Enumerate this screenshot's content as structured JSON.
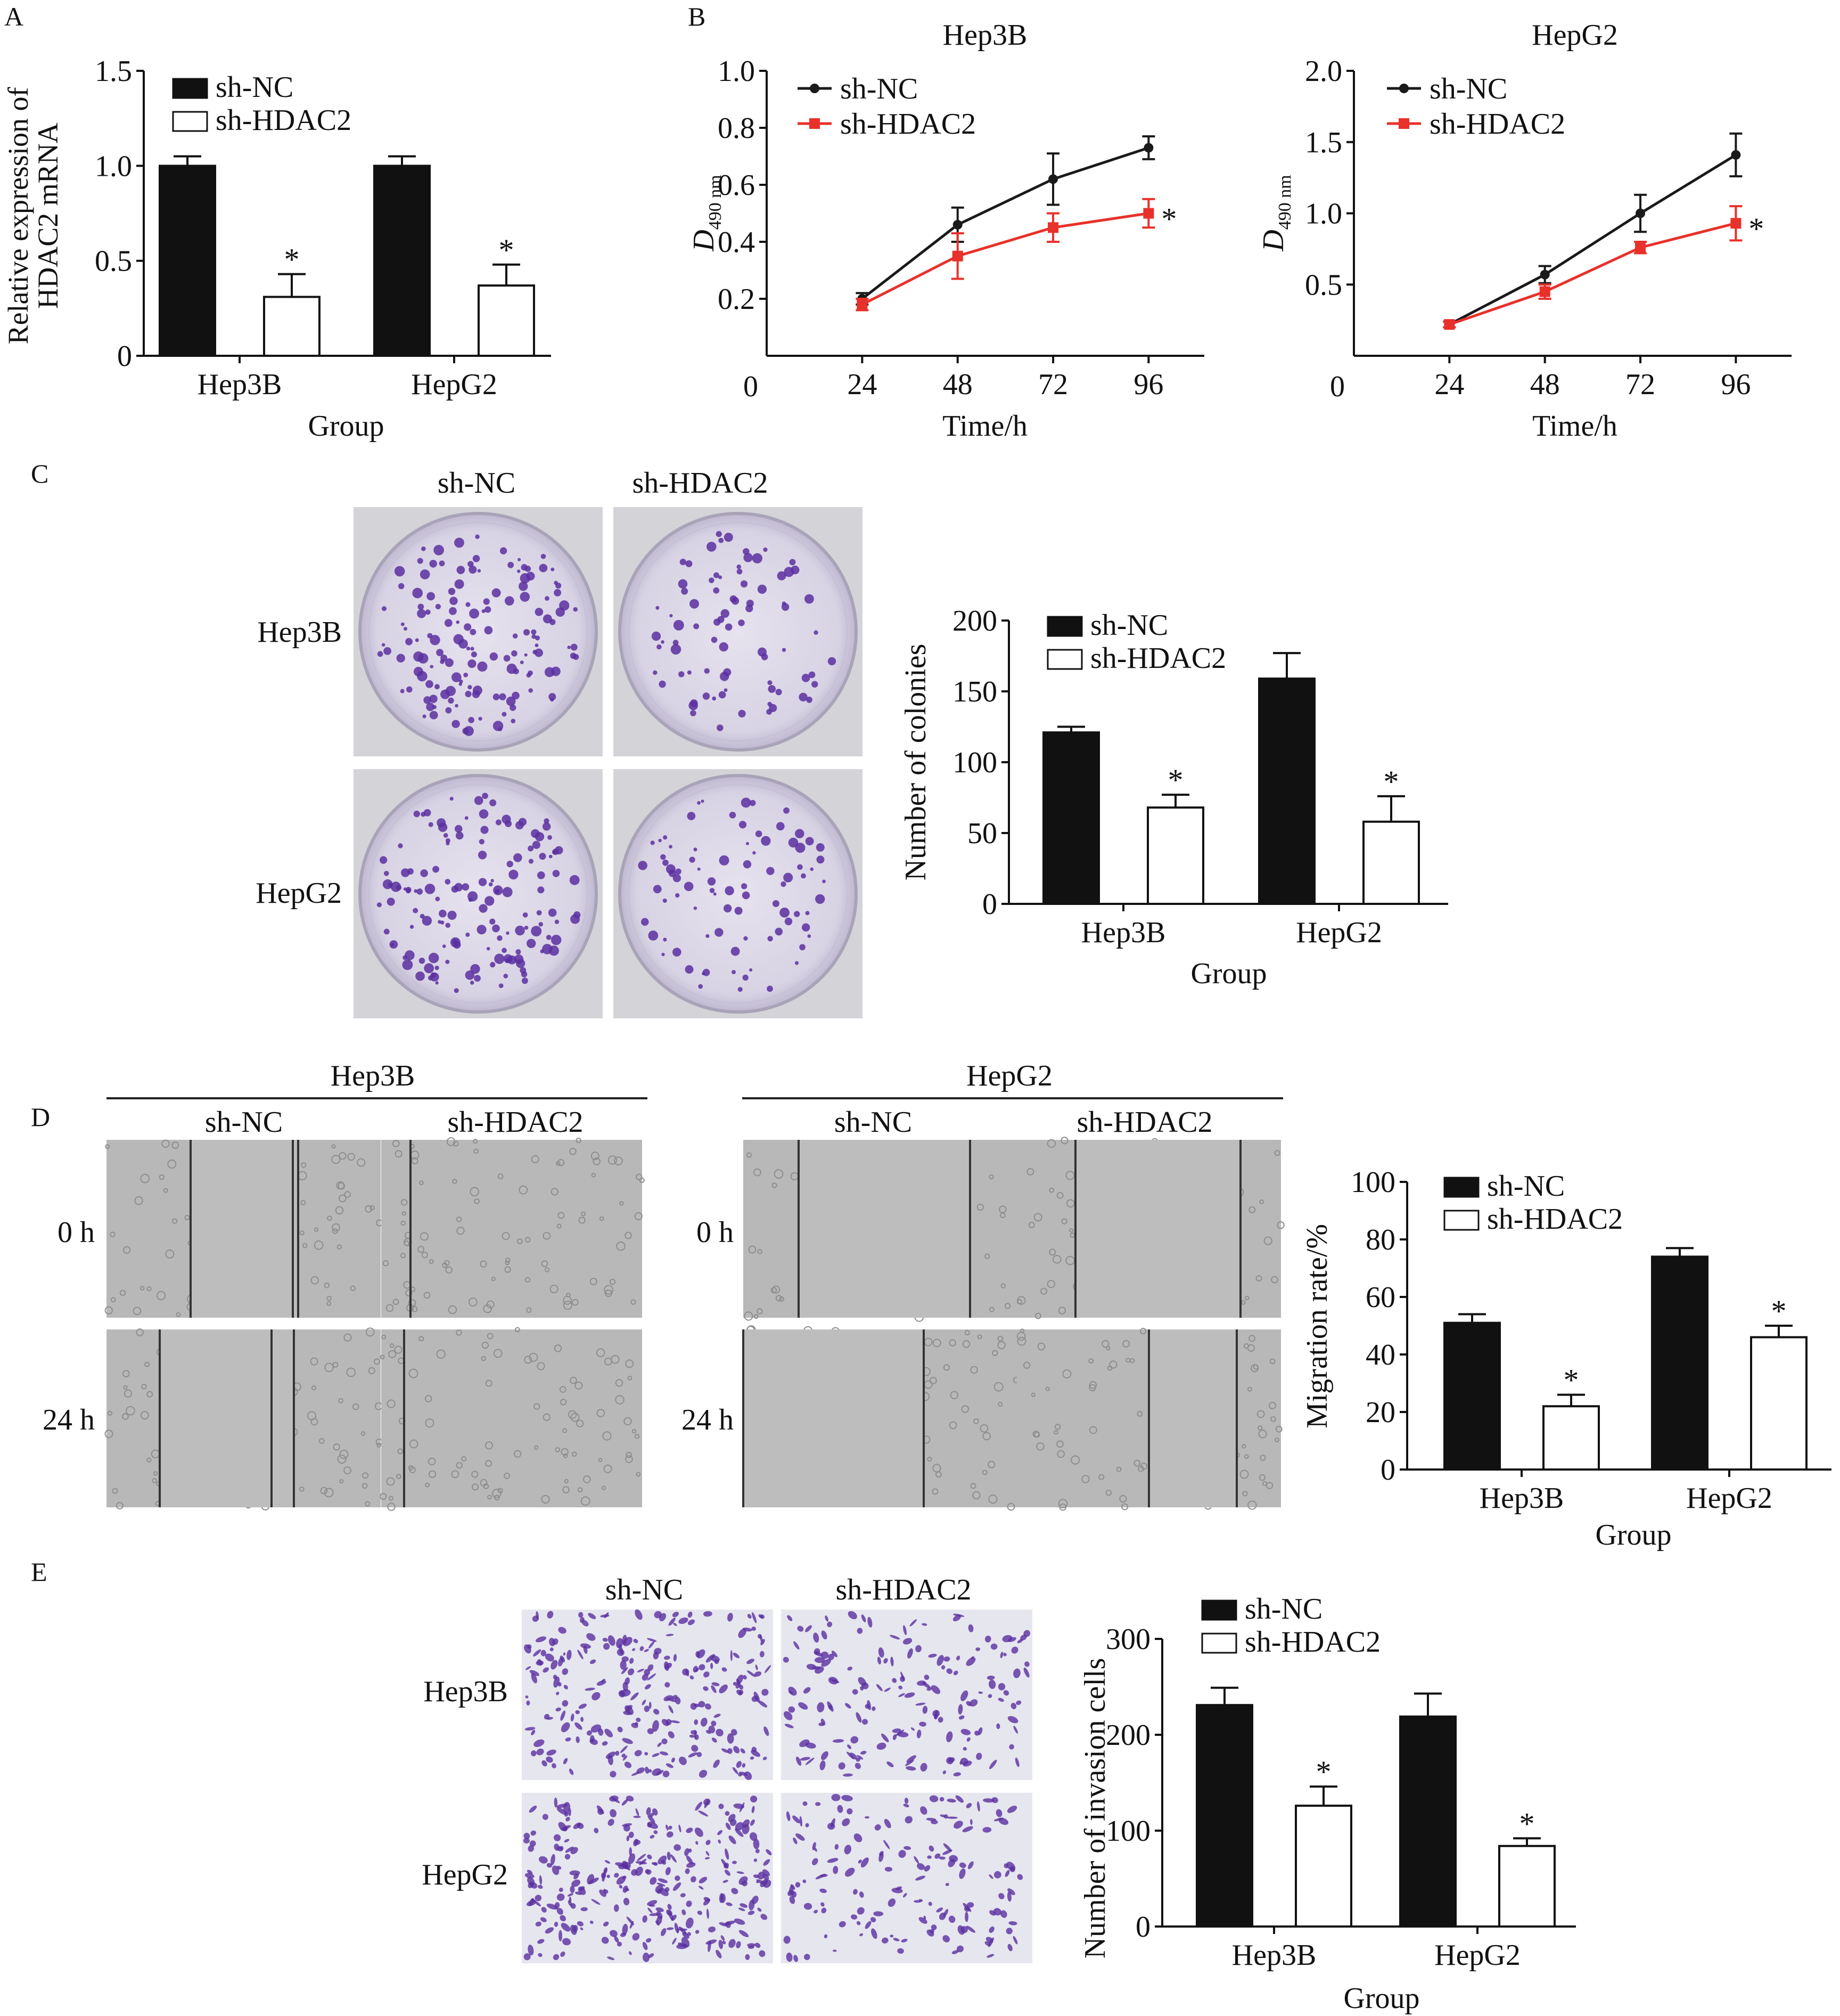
{
  "colors": {
    "nc_fill": "#111111",
    "hdac_fill": "#ffffff",
    "nc_line": "#1a1a1a",
    "hdac_line": "#e8312a",
    "crystal_violet": "#5a2fa0",
    "dish_bg": "#dcd8e6",
    "scratch_bg": "#b8b8b8"
  },
  "legend": {
    "nc": "sh-NC",
    "hdac": "sh-HDAC2"
  },
  "star": "*",
  "panelA": {
    "letter": "A",
    "ylabel_line1": "Relative expression of",
    "ylabel_line2": "HDAC2 mRNA",
    "xlabel": "Group"
  },
  "panelB": {
    "letter": "B",
    "left_title": "Hep3B",
    "right_title": "HepG2",
    "ylabel_main": "D",
    "ylabel_sub": "490 nm",
    "xlabel": "Time/h",
    "x_origin_label": "0"
  },
  "panelC": {
    "letter": "C",
    "col_labels": [
      "sh-NC",
      "sh-HDAC2"
    ],
    "row_labels": [
      "Hep3B",
      "HepG2"
    ],
    "ylabel": "Number of colonies",
    "xlabel": "Group"
  },
  "panelD": {
    "letter": "D",
    "groups": [
      "Hep3B",
      "HepG2"
    ],
    "col_labels": [
      "sh-NC",
      "sh-HDAC2"
    ],
    "row_labels": [
      "0 h",
      "24 h"
    ],
    "ylabel": "Migration rate/%",
    "xlabel": "Group"
  },
  "panelE": {
    "letter": "E",
    "col_labels": [
      "sh-NC",
      "sh-HDAC2"
    ],
    "row_labels": [
      "Hep3B",
      "HepG2"
    ],
    "ylabel": "Number of invasion cells",
    "xlabel": "Group"
  },
  "chart_data": [
    {
      "panel": "A",
      "type": "bar",
      "categories": [
        "Hep3B",
        "HepG2"
      ],
      "series": [
        {
          "name": "sh-NC",
          "values": [
            1.0,
            1.0
          ],
          "errors": [
            0.05,
            0.05
          ]
        },
        {
          "name": "sh-HDAC2",
          "values": [
            0.31,
            0.37
          ],
          "errors": [
            0.12,
            0.11
          ],
          "significant": [
            true,
            true
          ]
        }
      ],
      "ylim": [
        0,
        1.5
      ],
      "yticks": [
        "0",
        "0.5",
        "1.0",
        "1.5"
      ],
      "legend_position": "top-left"
    },
    {
      "panel": "B-left",
      "type": "line",
      "x": [
        24,
        48,
        72,
        96
      ],
      "xlim": [
        0,
        110
      ],
      "xticks": [
        "24",
        "48",
        "72",
        "96"
      ],
      "series": [
        {
          "name": "sh-NC",
          "values": [
            0.2,
            0.46,
            0.62,
            0.73
          ],
          "errors": [
            0.02,
            0.06,
            0.09,
            0.04
          ]
        },
        {
          "name": "sh-HDAC2",
          "values": [
            0.18,
            0.35,
            0.45,
            0.5
          ],
          "errors": [
            0.02,
            0.08,
            0.05,
            0.05
          ],
          "significant_last": true
        }
      ],
      "ylim": [
        0,
        1.0
      ],
      "yticks": [
        "0.2",
        "0.4",
        "0.6",
        "0.8",
        "1.0"
      ],
      "legend_position": "top-left"
    },
    {
      "panel": "B-right",
      "type": "line",
      "x": [
        24,
        48,
        72,
        96
      ],
      "xlim": [
        0,
        110
      ],
      "xticks": [
        "24",
        "48",
        "72",
        "96"
      ],
      "series": [
        {
          "name": "sh-NC",
          "values": [
            0.22,
            0.57,
            1.0,
            1.41
          ],
          "errors": [
            0.02,
            0.06,
            0.13,
            0.15
          ]
        },
        {
          "name": "sh-HDAC2",
          "values": [
            0.22,
            0.45,
            0.76,
            0.93
          ],
          "errors": [
            0.02,
            0.05,
            0.04,
            0.12
          ],
          "significant_last": true
        }
      ],
      "ylim": [
        0,
        2.0
      ],
      "yticks": [
        "0.5",
        "1.0",
        "1.5",
        "2.0"
      ],
      "legend_position": "top-left"
    },
    {
      "panel": "C",
      "type": "bar",
      "categories": [
        "Hep3B",
        "HepG2"
      ],
      "series": [
        {
          "name": "sh-NC",
          "values": [
            121,
            159
          ],
          "errors": [
            4,
            18
          ]
        },
        {
          "name": "sh-HDAC2",
          "values": [
            68,
            58
          ],
          "errors": [
            9,
            18
          ],
          "significant": [
            true,
            true
          ]
        }
      ],
      "ylim": [
        0,
        200
      ],
      "yticks": [
        "0",
        "50",
        "100",
        "150",
        "200"
      ],
      "legend_position": "top"
    },
    {
      "panel": "D",
      "type": "bar",
      "categories": [
        "Hep3B",
        "HepG2"
      ],
      "series": [
        {
          "name": "sh-NC",
          "values": [
            51,
            74
          ],
          "errors": [
            3,
            3
          ]
        },
        {
          "name": "sh-HDAC2",
          "values": [
            22,
            46
          ],
          "errors": [
            4,
            4
          ],
          "significant": [
            true,
            true
          ]
        }
      ],
      "ylim": [
        0,
        100
      ],
      "yticks": [
        "0",
        "20",
        "40",
        "60",
        "80",
        "100"
      ],
      "legend_position": "top"
    },
    {
      "panel": "E",
      "type": "bar",
      "categories": [
        "Hep3B",
        "HepG2"
      ],
      "series": [
        {
          "name": "sh-NC",
          "values": [
            231,
            219
          ],
          "errors": [
            18,
            24
          ]
        },
        {
          "name": "sh-HDAC2",
          "values": [
            126,
            84
          ],
          "errors": [
            20,
            8
          ],
          "significant": [
            true,
            true
          ]
        }
      ],
      "ylim": [
        0,
        300
      ],
      "yticks": [
        "0",
        "100",
        "200",
        "300"
      ],
      "legend_position": "top"
    }
  ]
}
